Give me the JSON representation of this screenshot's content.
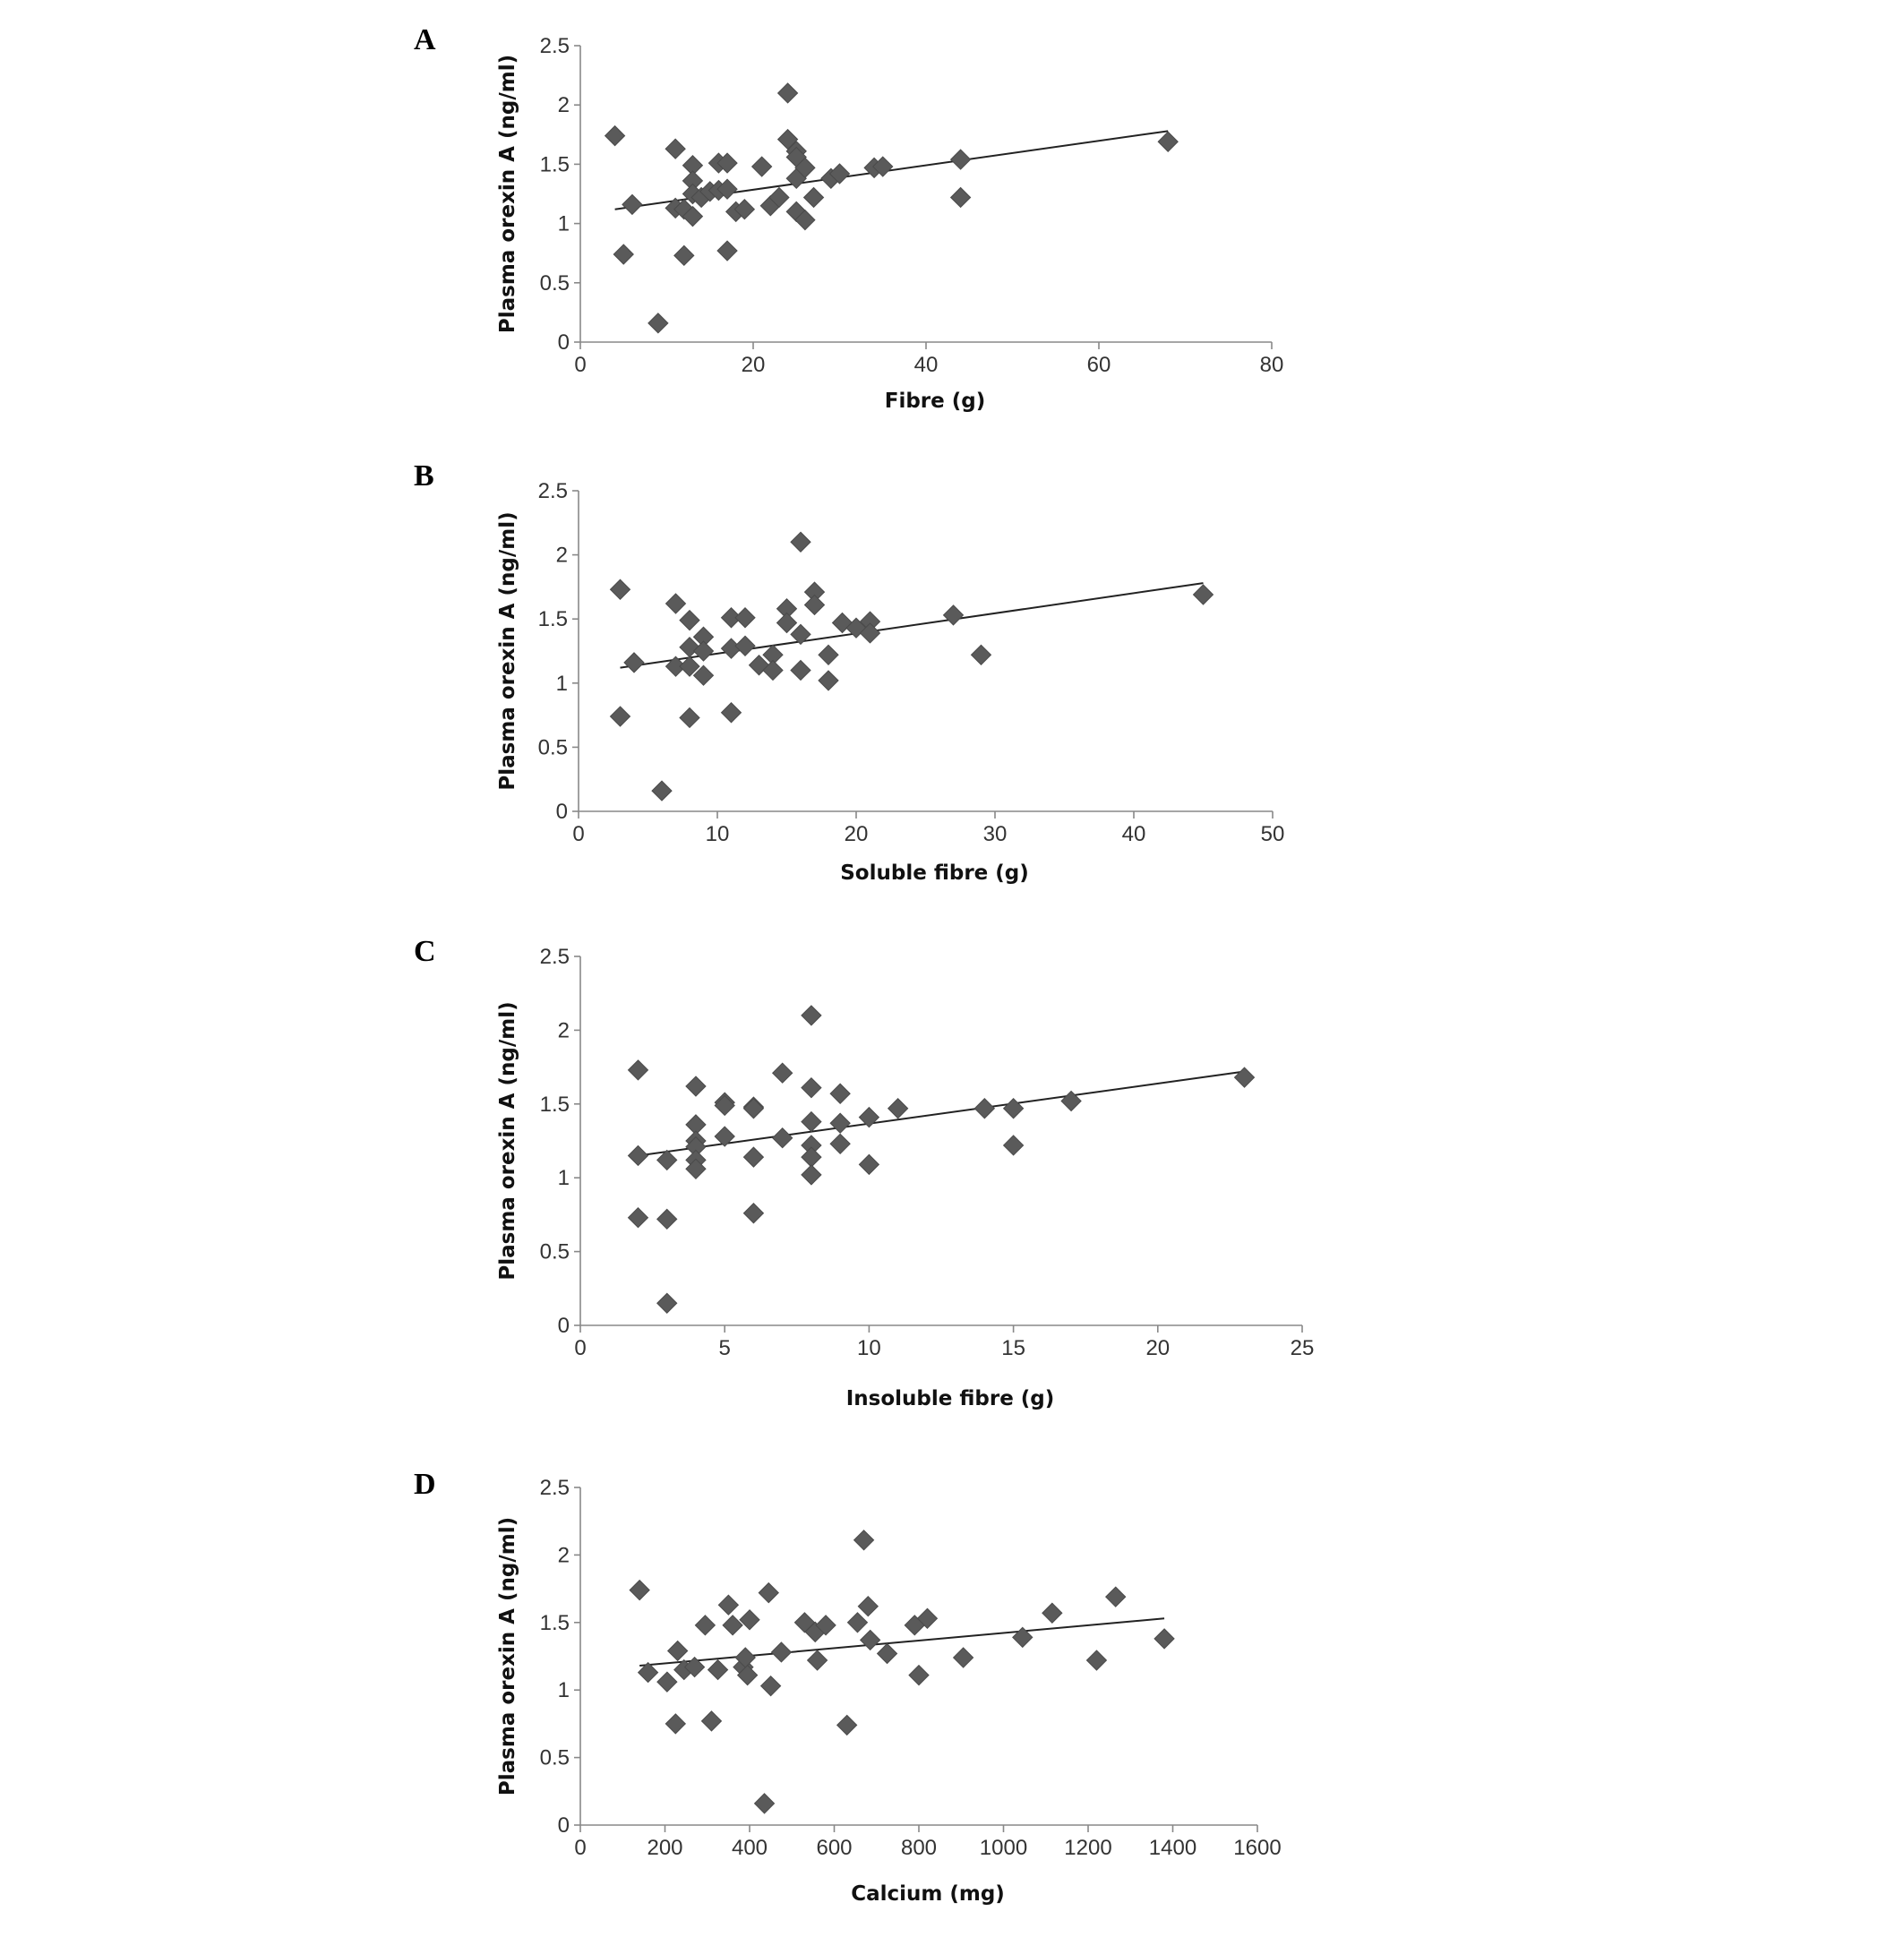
{
  "chart_data": [
    {
      "panel": "A",
      "type": "scatter",
      "xlabel": "Fibre (g)",
      "ylabel": "Plasma orexin A (ng/ml)",
      "xlim": [
        0,
        80
      ],
      "ylim": [
        0,
        2.5
      ],
      "xticks": [
        "0",
        "20",
        "40",
        "60",
        "80"
      ],
      "yticks": [
        "0",
        "0.5",
        "1",
        "1.5",
        "2",
        "2.5"
      ],
      "grid": false,
      "trendline": [
        [
          4,
          1.12
        ],
        [
          68,
          1.78
        ]
      ],
      "points": [
        [
          4,
          1.74
        ],
        [
          5,
          0.74
        ],
        [
          6,
          1.16
        ],
        [
          9,
          0.16
        ],
        [
          11,
          1.63
        ],
        [
          11,
          1.13
        ],
        [
          12,
          0.73
        ],
        [
          12,
          1.12
        ],
        [
          13,
          1.49
        ],
        [
          13,
          1.36
        ],
        [
          13,
          1.25
        ],
        [
          13,
          1.06
        ],
        [
          14,
          1.22
        ],
        [
          15,
          1.27
        ],
        [
          16,
          1.51
        ],
        [
          16,
          1.28
        ],
        [
          17,
          1.51
        ],
        [
          17,
          0.77
        ],
        [
          17,
          1.29
        ],
        [
          18,
          1.1
        ],
        [
          19,
          1.12
        ],
        [
          21,
          1.48
        ],
        [
          22,
          1.15
        ],
        [
          23,
          1.22
        ],
        [
          24,
          2.1
        ],
        [
          24,
          1.71
        ],
        [
          25,
          1.61
        ],
        [
          25,
          1.56
        ],
        [
          25,
          1.38
        ],
        [
          25,
          1.1
        ],
        [
          26,
          1.47
        ],
        [
          26,
          1.03
        ],
        [
          27,
          1.22
        ],
        [
          29,
          1.38
        ],
        [
          30,
          1.42
        ],
        [
          34,
          1.47
        ],
        [
          35,
          1.48
        ],
        [
          44,
          1.54
        ],
        [
          44,
          1.22
        ],
        [
          68,
          1.69
        ]
      ]
    },
    {
      "panel": "B",
      "type": "scatter",
      "xlabel": "Soluble fibre (g)",
      "ylabel": "Plasma orexin A (ng/ml)",
      "xlim": [
        0,
        50
      ],
      "ylim": [
        0,
        2.5
      ],
      "xticks": [
        "0",
        "10",
        "20",
        "30",
        "40",
        "50"
      ],
      "yticks": [
        "0",
        "0.5",
        "1",
        "1.5",
        "2",
        "2.5"
      ],
      "grid": false,
      "trendline": [
        [
          3,
          1.12
        ],
        [
          45,
          1.78
        ]
      ],
      "points": [
        [
          3,
          1.73
        ],
        [
          3,
          0.74
        ],
        [
          4,
          1.16
        ],
        [
          6,
          0.16
        ],
        [
          7,
          1.62
        ],
        [
          7,
          1.13
        ],
        [
          8,
          1.49
        ],
        [
          8,
          1.28
        ],
        [
          8,
          1.13
        ],
        [
          8,
          0.73
        ],
        [
          9,
          1.36
        ],
        [
          9,
          1.25
        ],
        [
          9,
          1.06
        ],
        [
          11,
          1.51
        ],
        [
          11,
          1.27
        ],
        [
          11,
          0.77
        ],
        [
          12,
          1.51
        ],
        [
          12,
          1.29
        ],
        [
          13,
          1.14
        ],
        [
          14,
          1.22
        ],
        [
          14,
          1.1
        ],
        [
          15,
          1.58
        ],
        [
          15,
          1.47
        ],
        [
          16,
          2.1
        ],
        [
          16,
          1.38
        ],
        [
          16,
          1.1
        ],
        [
          17,
          1.71
        ],
        [
          17,
          1.61
        ],
        [
          18,
          1.22
        ],
        [
          18,
          1.02
        ],
        [
          19,
          1.47
        ],
        [
          20,
          1.43
        ],
        [
          21,
          1.48
        ],
        [
          21,
          1.39
        ],
        [
          27,
          1.53
        ],
        [
          29,
          1.22
        ],
        [
          45,
          1.69
        ]
      ]
    },
    {
      "panel": "C",
      "type": "scatter",
      "xlabel": "Insoluble fibre (g)",
      "ylabel": "Plasma orexin A (ng/ml)",
      "xlim": [
        0,
        25
      ],
      "ylim": [
        0,
        2.5
      ],
      "xticks": [
        "0",
        "5",
        "10",
        "15",
        "20",
        "25"
      ],
      "yticks": [
        "0",
        "0.5",
        "1",
        "1.5",
        "2",
        "2.5"
      ],
      "grid": false,
      "trendline": [
        [
          2,
          1.15
        ],
        [
          23,
          1.72
        ]
      ],
      "points": [
        [
          2,
          1.73
        ],
        [
          2,
          1.15
        ],
        [
          2,
          0.73
        ],
        [
          3,
          1.12
        ],
        [
          3,
          0.72
        ],
        [
          3,
          0.15
        ],
        [
          4,
          1.62
        ],
        [
          4,
          1.36
        ],
        [
          4,
          1.25
        ],
        [
          4,
          1.21
        ],
        [
          4,
          1.12
        ],
        [
          4,
          1.06
        ],
        [
          5,
          1.51
        ],
        [
          5,
          1.49
        ],
        [
          5,
          1.28
        ],
        [
          6,
          1.48
        ],
        [
          6,
          1.47
        ],
        [
          6,
          1.14
        ],
        [
          6,
          0.76
        ],
        [
          7,
          1.71
        ],
        [
          7,
          1.27
        ],
        [
          8,
          2.1
        ],
        [
          8,
          1.61
        ],
        [
          8,
          1.38
        ],
        [
          8,
          1.22
        ],
        [
          8,
          1.14
        ],
        [
          8,
          1.02
        ],
        [
          9,
          1.57
        ],
        [
          9,
          1.37
        ],
        [
          9,
          1.23
        ],
        [
          10,
          1.41
        ],
        [
          10,
          1.09
        ],
        [
          11,
          1.47
        ],
        [
          14,
          1.47
        ],
        [
          15,
          1.47
        ],
        [
          15,
          1.22
        ],
        [
          17,
          1.52
        ],
        [
          23,
          1.68
        ]
      ]
    },
    {
      "panel": "D",
      "type": "scatter",
      "xlabel": "Calcium (mg)",
      "ylabel": "Plasma orexin A (ng/ml)",
      "xlim": [
        0,
        1600
      ],
      "ylim": [
        0,
        2.5
      ],
      "xticks": [
        "0",
        "200",
        "400",
        "600",
        "800",
        "1000",
        "1200",
        "1400",
        "1600"
      ],
      "yticks": [
        "0",
        "0.5",
        "1",
        "1.5",
        "2",
        "2.5"
      ],
      "grid": false,
      "trendline": [
        [
          140,
          1.18
        ],
        [
          1380,
          1.53
        ]
      ],
      "points": [
        [
          140,
          1.74
        ],
        [
          160,
          1.13
        ],
        [
          205,
          1.06
        ],
        [
          225,
          0.75
        ],
        [
          230,
          1.29
        ],
        [
          245,
          1.15
        ],
        [
          270,
          1.17
        ],
        [
          295,
          1.48
        ],
        [
          310,
          0.77
        ],
        [
          325,
          1.15
        ],
        [
          350,
          1.63
        ],
        [
          360,
          1.48
        ],
        [
          385,
          1.17
        ],
        [
          390,
          1.24
        ],
        [
          395,
          1.11
        ],
        [
          400,
          1.52
        ],
        [
          435,
          0.16
        ],
        [
          445,
          1.72
        ],
        [
          450,
          1.03
        ],
        [
          475,
          1.28
        ],
        [
          530,
          1.5
        ],
        [
          555,
          1.43
        ],
        [
          560,
          1.22
        ],
        [
          580,
          1.48
        ],
        [
          630,
          0.74
        ],
        [
          655,
          1.5
        ],
        [
          670,
          2.11
        ],
        [
          680,
          1.62
        ],
        [
          685,
          1.37
        ],
        [
          725,
          1.27
        ],
        [
          790,
          1.48
        ],
        [
          800,
          1.11
        ],
        [
          820,
          1.53
        ],
        [
          905,
          1.24
        ],
        [
          1045,
          1.39
        ],
        [
          1115,
          1.57
        ],
        [
          1220,
          1.22
        ],
        [
          1265,
          1.69
        ],
        [
          1380,
          1.38
        ]
      ]
    }
  ]
}
